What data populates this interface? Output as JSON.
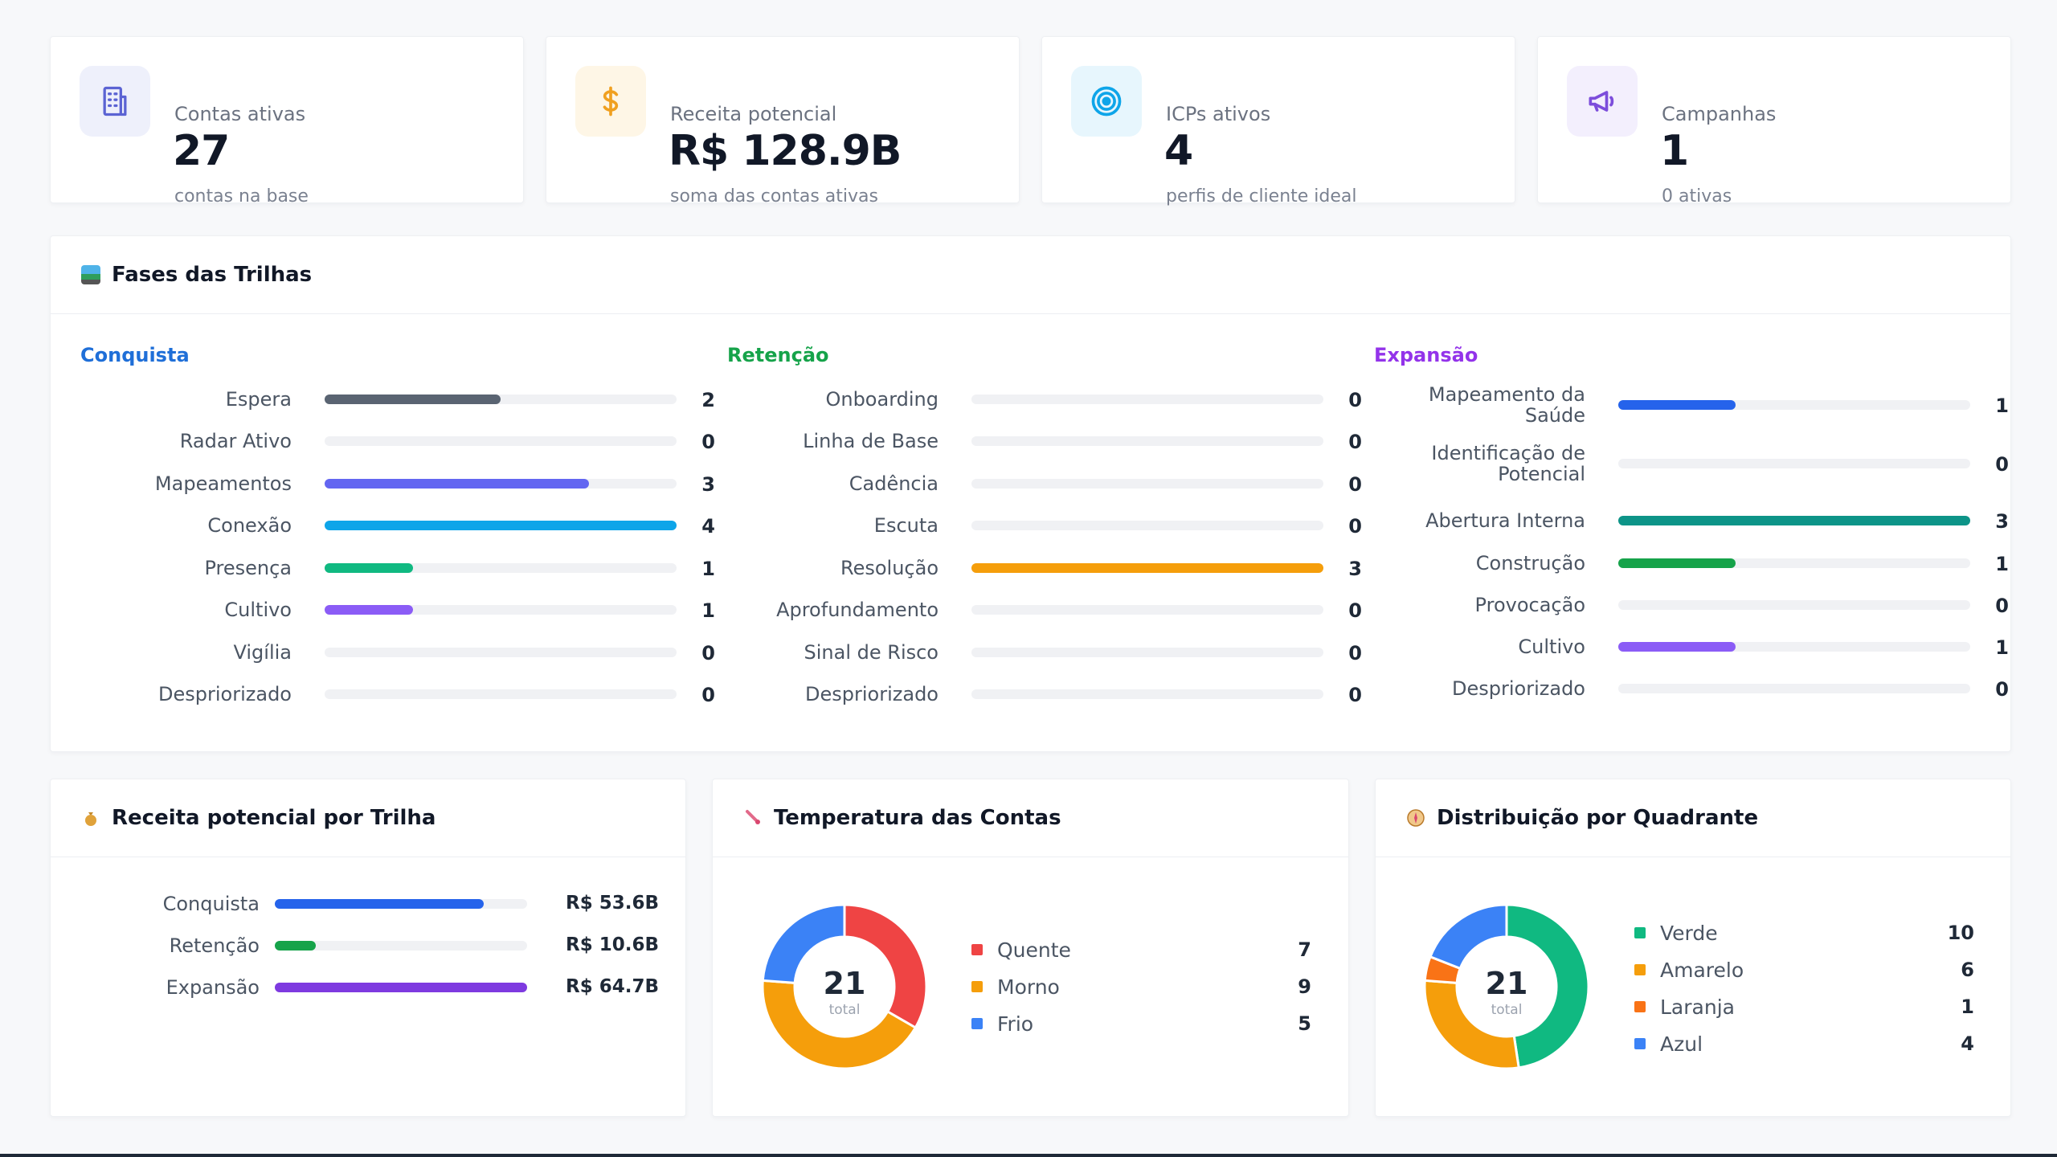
{
  "kpis": [
    {
      "label": "Contas ativas",
      "value": "27",
      "sub": "contas na base",
      "icon": "building-icon",
      "bg": "#eef0fb",
      "fg": "#5b63d3"
    },
    {
      "label": "Receita potencial",
      "value": "R$ 128.9B",
      "sub": "soma das contas ativas",
      "icon": "dollar-icon",
      "bg": "#fef6e6",
      "fg": "#f0a020"
    },
    {
      "label": "ICPs ativos",
      "value": "4",
      "sub": "perfis de cliente ideal",
      "icon": "target-icon",
      "bg": "#e7f6fd",
      "fg": "#0ea5e9"
    },
    {
      "label": "Campanhas",
      "value": "1",
      "sub": "0 ativas",
      "icon": "megaphone-icon",
      "bg": "#f3effd",
      "fg": "#7c4ddb"
    }
  ],
  "phases": {
    "title": "Fases das Trilhas",
    "columns": [
      {
        "name": "Conquista",
        "color": "#1f6fd8",
        "rows": [
          {
            "label": "Espera",
            "value": "2",
            "pct": 0.5,
            "color": "#5a6472"
          },
          {
            "label": "Radar Ativo",
            "value": "0",
            "pct": 0,
            "color": "#5a6472"
          },
          {
            "label": "Mapeamentos",
            "value": "3",
            "pct": 0.75,
            "color": "#6366f1"
          },
          {
            "label": "Conexão",
            "value": "4",
            "pct": 1.0,
            "color": "#0ea5e9"
          },
          {
            "label": "Presença",
            "value": "1",
            "pct": 0.25,
            "color": "#10b981"
          },
          {
            "label": "Cultivo",
            "value": "1",
            "pct": 0.25,
            "color": "#8b5cf6"
          },
          {
            "label": "Vigília",
            "value": "0",
            "pct": 0,
            "color": "#5a6472"
          },
          {
            "label": "Despriorizado",
            "value": "0",
            "pct": 0,
            "color": "#5a6472"
          }
        ]
      },
      {
        "name": "Retenção",
        "color": "#16a34a",
        "rows": [
          {
            "label": "Onboarding",
            "value": "0",
            "pct": 0,
            "color": "#f59e0b"
          },
          {
            "label": "Linha de Base",
            "value": "0",
            "pct": 0,
            "color": "#f59e0b"
          },
          {
            "label": "Cadência",
            "value": "0",
            "pct": 0,
            "color": "#f59e0b"
          },
          {
            "label": "Escuta",
            "value": "0",
            "pct": 0,
            "color": "#f59e0b"
          },
          {
            "label": "Resolução",
            "value": "3",
            "pct": 1.0,
            "color": "#f59e0b"
          },
          {
            "label": "Aprofundamento",
            "value": "0",
            "pct": 0,
            "color": "#f59e0b"
          },
          {
            "label": "Sinal de Risco",
            "value": "0",
            "pct": 0,
            "color": "#f59e0b"
          },
          {
            "label": "Despriorizado",
            "value": "0",
            "pct": 0,
            "color": "#f59e0b"
          }
        ]
      },
      {
        "name": "Expansão",
        "color": "#9333ea",
        "rows": [
          {
            "label": "Mapeamento da Saúde",
            "value": "1",
            "pct": 0.333,
            "color": "#2563eb",
            "two_line": true
          },
          {
            "label": "Identificação de Potencial",
            "value": "0",
            "pct": 0,
            "color": "#2563eb",
            "two_line": true
          },
          {
            "label": "Abertura Interna",
            "value": "3",
            "pct": 1.0,
            "color": "#0d9488"
          },
          {
            "label": "Construção",
            "value": "1",
            "pct": 0.333,
            "color": "#16a34a"
          },
          {
            "label": "Provocação",
            "value": "0",
            "pct": 0,
            "color": "#16a34a"
          },
          {
            "label": "Cultivo",
            "value": "1",
            "pct": 0.333,
            "color": "#8b5cf6"
          },
          {
            "label": "Despriorizado",
            "value": "0",
            "pct": 0,
            "color": "#8b5cf6"
          }
        ]
      }
    ]
  },
  "revenue": {
    "title": "Receita potencial por Trilha",
    "rows": [
      {
        "label": "Conquista",
        "value": "R$ 53.6B",
        "pct": 0.828,
        "color": "#2563eb"
      },
      {
        "label": "Retenção",
        "value": "R$ 10.6B",
        "pct": 0.164,
        "color": "#16a34a"
      },
      {
        "label": "Expansão",
        "value": "R$ 64.7B",
        "pct": 1.0,
        "color": "#7e3ae0"
      }
    ]
  },
  "temperature": {
    "title": "Temperatura das Contas",
    "total": "21",
    "total_label": "total",
    "items": [
      {
        "label": "Quente",
        "value": "7",
        "color": "#ef4444"
      },
      {
        "label": "Morno",
        "value": "9",
        "color": "#f59e0b"
      },
      {
        "label": "Frio",
        "value": "5",
        "color": "#3b82f6"
      }
    ]
  },
  "quadrant": {
    "title": "Distribuição por Quadrante",
    "total": "21",
    "total_label": "total",
    "items": [
      {
        "label": "Verde",
        "value": "10",
        "color": "#10b981"
      },
      {
        "label": "Amarelo",
        "value": "6",
        "color": "#f59e0b"
      },
      {
        "label": "Laranja",
        "value": "1",
        "color": "#f97316"
      },
      {
        "label": "Azul",
        "value": "4",
        "color": "#3b82f6"
      }
    ]
  }
}
